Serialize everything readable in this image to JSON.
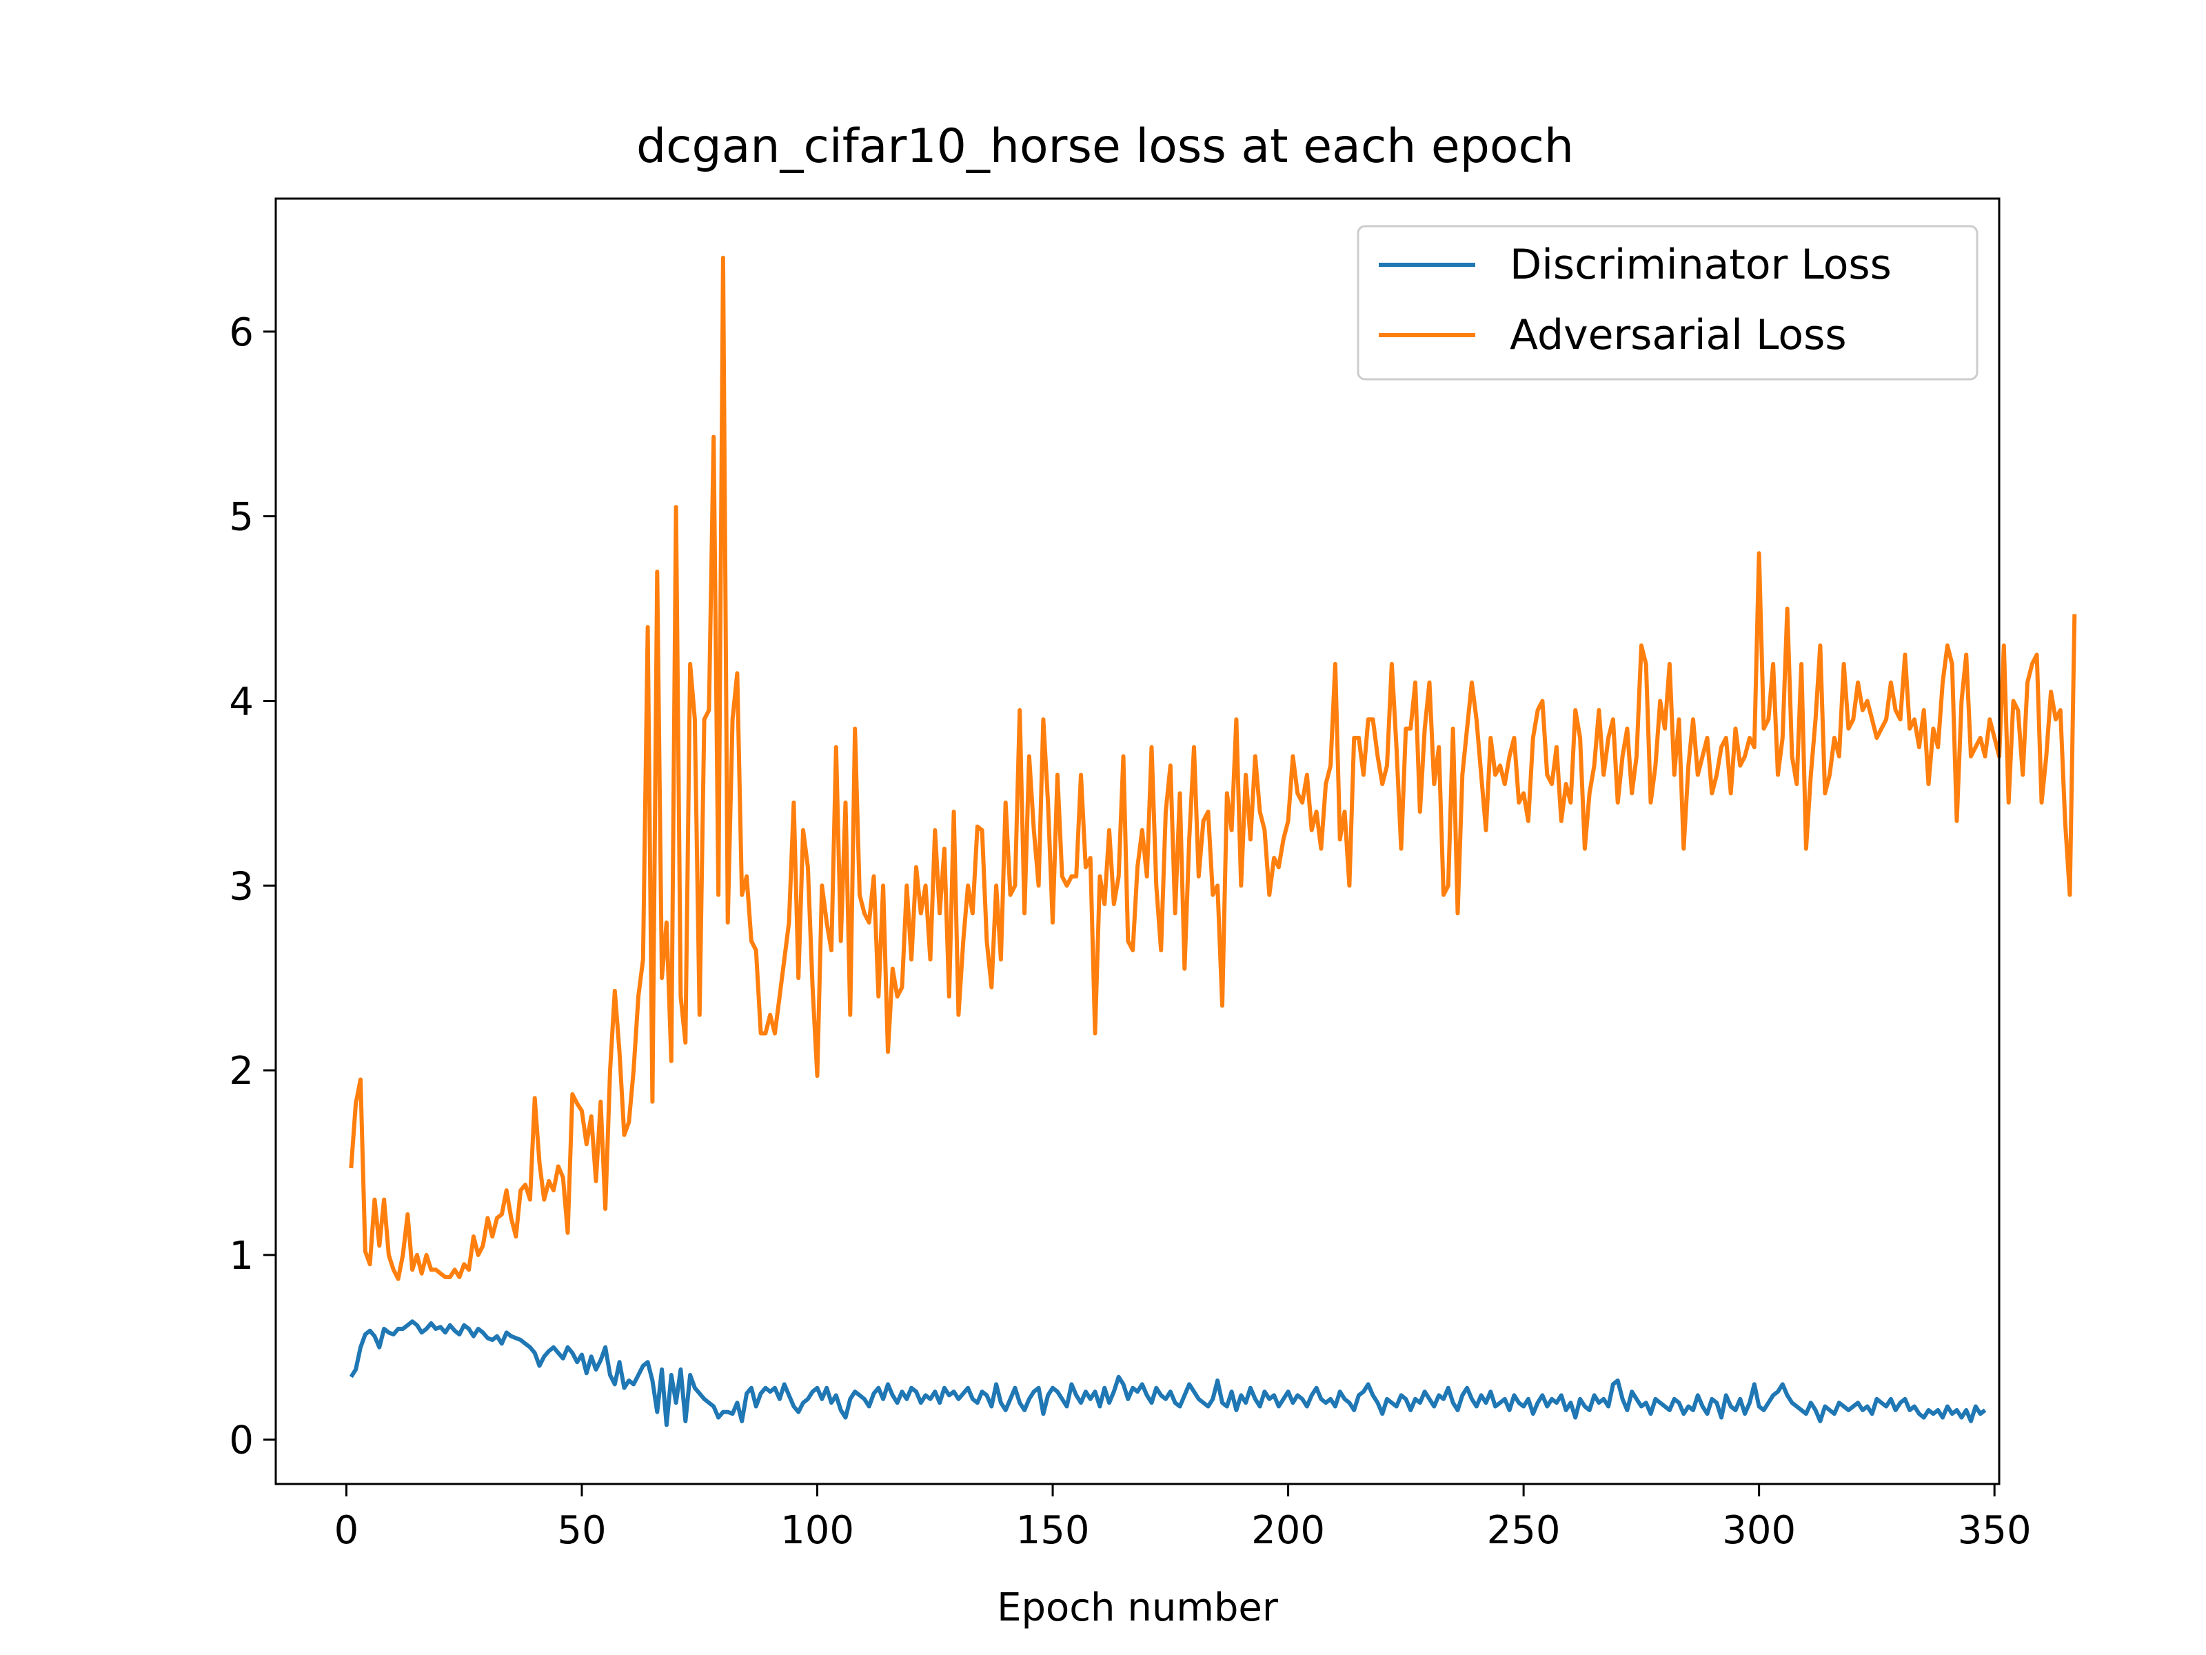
{
  "chart_data": {
    "type": "line",
    "title": "dcgan_cifar10_horse loss at each epoch",
    "xlabel": "Epoch number",
    "ylabel": "",
    "xlim": [
      -15,
      351
    ],
    "ylim": [
      -0.24,
      6.72
    ],
    "xticks": [
      0,
      50,
      100,
      150,
      200,
      250,
      300,
      350
    ],
    "yticks": [
      0,
      1,
      2,
      3,
      4,
      5,
      6
    ],
    "grid": false,
    "legend": "top-right",
    "colors": {
      "discriminator": "#1f77b4",
      "adversarial": "#ff7f0e"
    },
    "series": [
      {
        "name": "Discriminator Loss",
        "x_start": 1,
        "x_step": 1,
        "values": [
          0.34,
          0.38,
          0.5,
          0.57,
          0.59,
          0.56,
          0.5,
          0.6,
          0.58,
          0.57,
          0.6,
          0.6,
          0.62,
          0.64,
          0.62,
          0.58,
          0.6,
          0.63,
          0.6,
          0.61,
          0.58,
          0.62,
          0.59,
          0.57,
          0.62,
          0.6,
          0.56,
          0.6,
          0.58,
          0.55,
          0.54,
          0.56,
          0.52,
          0.58,
          0.56,
          0.55,
          0.54,
          0.52,
          0.5,
          0.47,
          0.4,
          0.45,
          0.48,
          0.5,
          0.47,
          0.44,
          0.5,
          0.47,
          0.42,
          0.46,
          0.36,
          0.45,
          0.38,
          0.43,
          0.5,
          0.35,
          0.3,
          0.42,
          0.28,
          0.32,
          0.3,
          0.35,
          0.4,
          0.42,
          0.32,
          0.15,
          0.38,
          0.08,
          0.35,
          0.2,
          0.38,
          0.1,
          0.35,
          0.28,
          0.25,
          0.22,
          0.2,
          0.18,
          0.12,
          0.15,
          0.15,
          0.14,
          0.2,
          0.1,
          0.25,
          0.28,
          0.18,
          0.25,
          0.28,
          0.26,
          0.28,
          0.22,
          0.3,
          0.24,
          0.18,
          0.15,
          0.2,
          0.22,
          0.26,
          0.28,
          0.22,
          0.28,
          0.2,
          0.24,
          0.16,
          0.12,
          0.22,
          0.26,
          0.24,
          0.22,
          0.18,
          0.25,
          0.28,
          0.22,
          0.3,
          0.24,
          0.2,
          0.26,
          0.22,
          0.28,
          0.26,
          0.2,
          0.24,
          0.22,
          0.26,
          0.2,
          0.28,
          0.24,
          0.26,
          0.22,
          0.25,
          0.28,
          0.22,
          0.2,
          0.26,
          0.24,
          0.18,
          0.3,
          0.2,
          0.16,
          0.22,
          0.28,
          0.2,
          0.16,
          0.22,
          0.26,
          0.28,
          0.14,
          0.24,
          0.28,
          0.26,
          0.22,
          0.18,
          0.3,
          0.24,
          0.2,
          0.26,
          0.22,
          0.26,
          0.18,
          0.28,
          0.2,
          0.26,
          0.34,
          0.3,
          0.22,
          0.28,
          0.26,
          0.3,
          0.24,
          0.2,
          0.28,
          0.24,
          0.22,
          0.26,
          0.2,
          0.18,
          0.24,
          0.3,
          0.26,
          0.22,
          0.2,
          0.18,
          0.22,
          0.32,
          0.2,
          0.18,
          0.26,
          0.16,
          0.24,
          0.2,
          0.28,
          0.22,
          0.18,
          0.26,
          0.22,
          0.24,
          0.18,
          0.22,
          0.26,
          0.2,
          0.24,
          0.22,
          0.18,
          0.24,
          0.28,
          0.22,
          0.2,
          0.22,
          0.18,
          0.26,
          0.22,
          0.2,
          0.16,
          0.24,
          0.26,
          0.3,
          0.24,
          0.2,
          0.14,
          0.22,
          0.2,
          0.18,
          0.24,
          0.22,
          0.16,
          0.22,
          0.2,
          0.26,
          0.22,
          0.18,
          0.24,
          0.22,
          0.28,
          0.2,
          0.16,
          0.24,
          0.28,
          0.22,
          0.18,
          0.24,
          0.2,
          0.26,
          0.18,
          0.2,
          0.22,
          0.16,
          0.24,
          0.2,
          0.18,
          0.22,
          0.14,
          0.2,
          0.24,
          0.18,
          0.22,
          0.2,
          0.24,
          0.16,
          0.2,
          0.12,
          0.22,
          0.18,
          0.16,
          0.24,
          0.2,
          0.22,
          0.18,
          0.3,
          0.32,
          0.22,
          0.16,
          0.26,
          0.22,
          0.18,
          0.2,
          0.14,
          0.22,
          0.2,
          0.18,
          0.16,
          0.22,
          0.2,
          0.14,
          0.18,
          0.16,
          0.24,
          0.18,
          0.14,
          0.22,
          0.2,
          0.12,
          0.24,
          0.18,
          0.16,
          0.22,
          0.14,
          0.2,
          0.3,
          0.18,
          0.16,
          0.2,
          0.24,
          0.26,
          0.3,
          0.24,
          0.2,
          0.18,
          0.16,
          0.14,
          0.2,
          0.16,
          0.1,
          0.18,
          0.16,
          0.14,
          0.2,
          0.18,
          0.16,
          0.18,
          0.2,
          0.16,
          0.18,
          0.14,
          0.22,
          0.2,
          0.18,
          0.22,
          0.16,
          0.2,
          0.22,
          0.16,
          0.18,
          0.14,
          0.12,
          0.16,
          0.14,
          0.16,
          0.12,
          0.18,
          0.14,
          0.16,
          0.12,
          0.16,
          0.1,
          0.18,
          0.14,
          0.16
        ]
      },
      {
        "name": "Adversarial Loss",
        "x_start": 1,
        "x_step": 1,
        "values": [
          1.47,
          1.82,
          1.95,
          1.02,
          0.95,
          1.3,
          1.05,
          1.3,
          1.0,
          0.92,
          0.87,
          1.0,
          1.22,
          0.92,
          1.0,
          0.9,
          1.0,
          0.92,
          0.92,
          0.9,
          0.88,
          0.88,
          0.92,
          0.88,
          0.95,
          0.92,
          1.1,
          1.0,
          1.05,
          1.2,
          1.1,
          1.2,
          1.22,
          1.35,
          1.2,
          1.1,
          1.35,
          1.38,
          1.3,
          1.85,
          1.5,
          1.3,
          1.4,
          1.35,
          1.48,
          1.42,
          1.12,
          1.87,
          1.82,
          1.78,
          1.6,
          1.75,
          1.4,
          1.83,
          1.25,
          2.0,
          2.43,
          2.1,
          1.65,
          1.72,
          2.0,
          2.4,
          2.6,
          4.4,
          1.83,
          4.7,
          2.5,
          2.8,
          2.05,
          5.05,
          2.4,
          2.15,
          4.2,
          3.9,
          2.3,
          3.9,
          3.95,
          5.43,
          2.95,
          6.4,
          2.8,
          3.9,
          4.15,
          2.95,
          3.05,
          2.7,
          2.65,
          2.2,
          2.2,
          2.3,
          2.2,
          2.4,
          2.6,
          2.8,
          3.45,
          2.5,
          3.3,
          3.1,
          2.45,
          1.97,
          3.0,
          2.8,
          2.65,
          3.75,
          2.7,
          3.45,
          2.3,
          3.85,
          2.95,
          2.85,
          2.8,
          3.05,
          2.4,
          3.0,
          2.1,
          2.55,
          2.4,
          2.45,
          3.0,
          2.6,
          3.1,
          2.85,
          3.0,
          2.6,
          3.3,
          2.85,
          3.2,
          2.4,
          3.4,
          2.3,
          2.7,
          3.0,
          2.85,
          3.32,
          3.3,
          2.7,
          2.45,
          3.0,
          2.6,
          3.45,
          2.95,
          3.0,
          3.95,
          2.85,
          3.7,
          3.3,
          3.0,
          3.9,
          3.45,
          2.8,
          3.6,
          3.05,
          3.0,
          3.05,
          3.05,
          3.6,
          3.1,
          3.15,
          2.2,
          3.05,
          2.9,
          3.3,
          2.9,
          3.05,
          3.7,
          2.7,
          2.65,
          3.1,
          3.3,
          3.05,
          3.75,
          3.0,
          2.65,
          3.4,
          3.65,
          2.85,
          3.5,
          2.55,
          3.25,
          3.75,
          3.05,
          3.35,
          3.4,
          2.95,
          3.0,
          2.35,
          3.5,
          3.3,
          3.9,
          3.0,
          3.6,
          3.25,
          3.7,
          3.4,
          3.3,
          2.95,
          3.15,
          3.1,
          3.25,
          3.35,
          3.7,
          3.5,
          3.45,
          3.6,
          3.3,
          3.4,
          3.2,
          3.55,
          3.65,
          4.2,
          3.25,
          3.4,
          3.0,
          3.8,
          3.8,
          3.6,
          3.9,
          3.9,
          3.7,
          3.55,
          3.65,
          4.2,
          3.75,
          3.2,
          3.85,
          3.85,
          4.1,
          3.4,
          3.85,
          4.1,
          3.55,
          3.75,
          2.95,
          3.0,
          3.85,
          2.85,
          3.6,
          3.85,
          4.1,
          3.9,
          3.6,
          3.3,
          3.8,
          3.6,
          3.65,
          3.55,
          3.7,
          3.8,
          3.45,
          3.5,
          3.35,
          3.8,
          3.95,
          4.0,
          3.6,
          3.55,
          3.75,
          3.35,
          3.55,
          3.45,
          3.95,
          3.8,
          3.2,
          3.5,
          3.65,
          3.95,
          3.6,
          3.8,
          3.9,
          3.45,
          3.7,
          3.85,
          3.5,
          3.7,
          4.3,
          4.2,
          3.45,
          3.65,
          4.0,
          3.85,
          4.2,
          3.6,
          3.9,
          3.2,
          3.65,
          3.9,
          3.6,
          3.7,
          3.8,
          3.5,
          3.6,
          3.75,
          3.8,
          3.5,
          3.85,
          3.65,
          3.7,
          3.8,
          3.75,
          4.8,
          3.85,
          3.9,
          4.2,
          3.6,
          3.8,
          4.5,
          3.7,
          3.55,
          4.2,
          3.2,
          3.6,
          3.9,
          4.3,
          3.5,
          3.6,
          3.8,
          3.7,
          4.2,
          3.85,
          3.9,
          4.1,
          3.95,
          4.0,
          3.9,
          3.8,
          3.85,
          3.9,
          4.1,
          3.95,
          3.9,
          4.25,
          3.85,
          3.9,
          3.75,
          3.95,
          3.55,
          3.85,
          3.75,
          4.1,
          4.3,
          4.2,
          3.35,
          4.0,
          4.25,
          3.7,
          3.75,
          3.8,
          3.7,
          3.9,
          3.8,
          3.7,
          4.3,
          3.45,
          4.0,
          3.95,
          3.6,
          4.1,
          4.2,
          4.25,
          3.45,
          3.7,
          4.05,
          3.9,
          3.95,
          3.35,
          2.95,
          4.47
        ]
      }
    ]
  }
}
